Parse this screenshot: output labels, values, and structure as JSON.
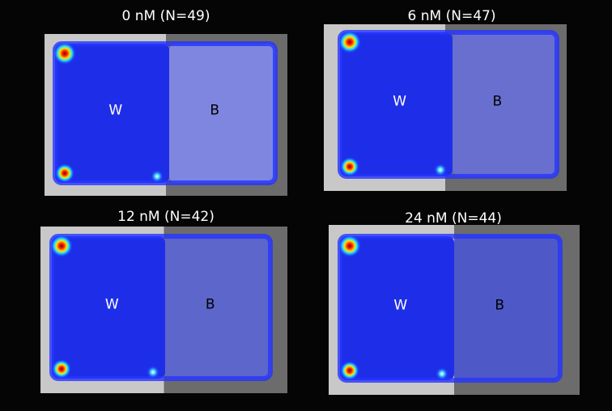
{
  "panels": [
    {
      "title": "0 nM (N=49)",
      "left_label": "W",
      "right_label": "B"
    },
    {
      "title": "6 nM (N=47)",
      "left_label": "W",
      "right_label": "B"
    },
    {
      "title": "12 nM (N=42)",
      "left_label": "W",
      "right_label": "B"
    },
    {
      "title": "24 nM (N=44)",
      "left_label": "W",
      "right_label": "B"
    }
  ]
}
